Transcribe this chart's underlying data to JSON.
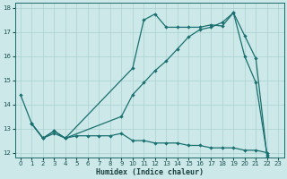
{
  "xlabel": "Humidex (Indice chaleur)",
  "bg_color": "#cce8e8",
  "grid_color": "#aad0d0",
  "line_color": "#1a7070",
  "xlim": [
    -0.5,
    23.5
  ],
  "ylim": [
    11.8,
    18.2
  ],
  "yticks": [
    12,
    13,
    14,
    15,
    16,
    17,
    18
  ],
  "xticks": [
    0,
    1,
    2,
    3,
    4,
    5,
    6,
    7,
    8,
    9,
    10,
    11,
    12,
    13,
    14,
    15,
    16,
    17,
    18,
    19,
    20,
    21,
    22,
    23
  ],
  "s1_x": [
    0,
    1,
    2,
    3,
    4,
    5,
    6,
    7,
    8,
    9,
    10,
    11,
    12,
    13,
    14,
    15,
    16,
    17,
    18,
    19,
    20,
    21,
    22
  ],
  "s1_y": [
    14.4,
    13.2,
    12.6,
    12.8,
    12.6,
    12.7,
    12.7,
    12.7,
    12.7,
    12.8,
    12.5,
    12.5,
    12.4,
    12.4,
    12.4,
    12.3,
    12.3,
    12.2,
    12.2,
    12.2,
    12.1,
    12.1,
    12.0
  ],
  "s2_x": [
    1,
    2,
    3,
    4,
    9,
    10,
    11,
    12,
    13,
    14,
    15,
    16,
    17,
    18,
    19,
    20,
    21,
    22
  ],
  "s2_y": [
    13.2,
    12.6,
    12.9,
    12.6,
    13.5,
    14.4,
    14.9,
    15.4,
    15.8,
    16.3,
    16.8,
    17.1,
    17.2,
    17.4,
    17.8,
    16.0,
    14.9,
    11.9
  ],
  "s3_x": [
    1,
    2,
    3,
    4,
    10,
    11,
    12,
    13,
    14,
    15,
    16,
    17,
    18,
    19,
    20,
    21,
    22
  ],
  "s3_y": [
    13.2,
    12.6,
    12.9,
    12.6,
    15.5,
    17.5,
    17.75,
    17.2,
    17.2,
    17.2,
    17.2,
    17.3,
    17.25,
    17.8,
    16.85,
    15.9,
    11.85
  ]
}
